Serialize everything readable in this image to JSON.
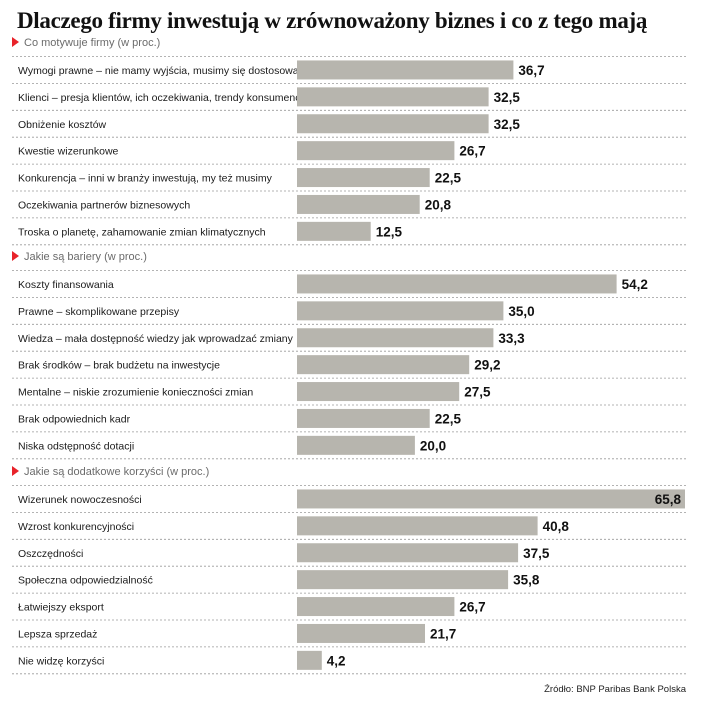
{
  "title": "Dlaczego firmy inwestują w zrównoważony biznes i co z tego mają",
  "source": "Źródło: BNP Paribas Bank Polska",
  "colors": {
    "bar": "#b7b5ae",
    "marker": "#e8232a",
    "section_text": "#6b6b6b",
    "divider": "#9a9a9a"
  },
  "chart_data": [
    {
      "type": "bar",
      "orientation": "horizontal",
      "title": "Co motywuje firmy (w proc.)",
      "xlim": [
        0,
        65.8
      ],
      "categories": [
        "Wymogi prawne – nie mamy wyjścia, musimy się dostosować",
        "Klienci – presja klientów, ich oczekiwania, trendy konsumenckie",
        "Obniżenie kosztów",
        "Kwestie wizerunkowe",
        "Konkurencja – inni w branży inwestują, my też musimy",
        "Oczekiwania partnerów biznesowych",
        "Troska o planetę, zahamowanie zmian klimatycznych"
      ],
      "values": [
        36.7,
        32.5,
        32.5,
        26.7,
        22.5,
        20.8,
        12.5
      ],
      "labels": [
        "36,7",
        "32,5",
        "32,5",
        "26,7",
        "22,5",
        "20,8",
        "12,5"
      ]
    },
    {
      "type": "bar",
      "orientation": "horizontal",
      "title": "Jakie są bariery (w proc.)",
      "xlim": [
        0,
        65.8
      ],
      "categories": [
        "Koszty finansowania",
        "Prawne – skomplikowane przepisy",
        "Wiedza – mała dostępność wiedzy jak wprowadzać zmiany",
        "Brak środków – brak budżetu na inwestycje",
        "Mentalne – niskie zrozumienie konieczności zmian",
        "Brak odpowiednich kadr",
        "Niska odstępność dotacji"
      ],
      "values": [
        54.2,
        35.0,
        33.3,
        29.2,
        27.5,
        22.5,
        20.0
      ],
      "labels": [
        "54,2",
        "35,0",
        "33,3",
        "29,2",
        "27,5",
        "22,5",
        "20,0"
      ]
    },
    {
      "type": "bar",
      "orientation": "horizontal",
      "title": "Jakie są dodatkowe korzyści (w proc.)",
      "xlim": [
        0,
        65.8
      ],
      "categories": [
        "Wizerunek nowoczesności",
        "Wzrost konkurencyjności",
        "Oszczędności",
        "Społeczna odpowiedzialność",
        "Łatwiejszy eksport",
        "Lepsza sprzedaż",
        "Nie widzę korzyści"
      ],
      "values": [
        65.8,
        40.8,
        37.5,
        35.8,
        26.7,
        21.7,
        4.2
      ],
      "labels": [
        "65,8",
        "40,8",
        "37,5",
        "35,8",
        "26,7",
        "21,7",
        "4,2"
      ]
    }
  ]
}
